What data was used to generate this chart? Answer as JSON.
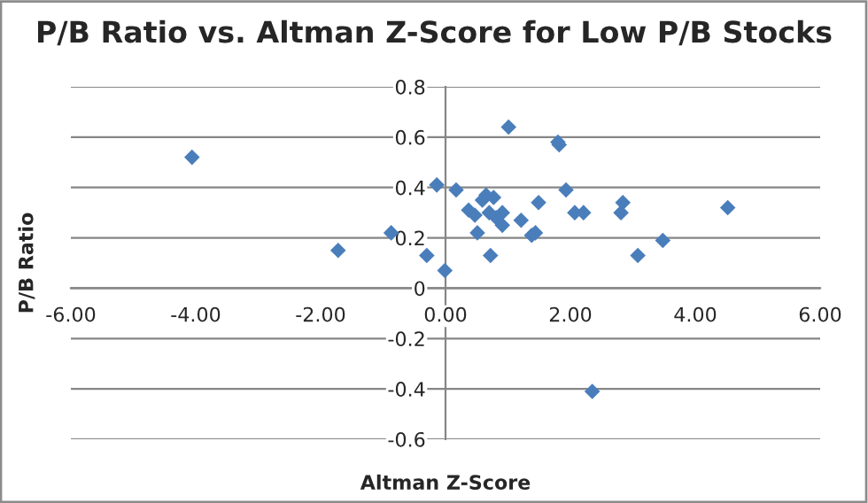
{
  "chart_data": {
    "type": "scatter",
    "title": "P/B Ratio vs. Altman Z-Score for Low P/B Stocks",
    "xlabel": "Altman Z-Score",
    "ylabel": "P/B Ratio",
    "x": [
      -4.06,
      -1.72,
      -0.87,
      -0.3,
      -0.14,
      -0.01,
      0.17,
      0.37,
      0.47,
      0.51,
      0.59,
      0.65,
      0.7,
      0.72,
      0.77,
      0.81,
      0.91,
      0.91,
      1.01,
      1.21,
      1.38,
      1.44,
      1.49,
      1.8,
      1.82,
      1.93,
      2.07,
      2.21,
      2.35,
      2.81,
      2.84,
      3.08,
      3.48,
      4.52
    ],
    "series": [
      {
        "color": "#4a7ebb",
        "values": [
          0.52,
          0.15,
          0.22,
          0.13,
          0.41,
          0.07,
          0.39,
          0.31,
          0.29,
          0.22,
          0.35,
          0.37,
          0.3,
          0.13,
          0.36,
          0.28,
          0.3,
          0.25,
          0.64,
          0.27,
          0.21,
          0.22,
          0.34,
          0.58,
          0.57,
          0.39,
          0.3,
          0.3,
          -0.41,
          0.3,
          0.34,
          0.13,
          0.19,
          0.32
        ]
      }
    ],
    "xlim": [
      -6,
      6
    ],
    "ylim": [
      -0.6,
      0.8
    ],
    "xticks": [
      {
        "value": -6,
        "label": "-6.00"
      },
      {
        "value": -4,
        "label": "-4.00"
      },
      {
        "value": -2,
        "label": "-2.00"
      },
      {
        "value": 0,
        "label": "0.00"
      },
      {
        "value": 2,
        "label": "2.00"
      },
      {
        "value": 4,
        "label": "4.00"
      },
      {
        "value": 6,
        "label": "6.00"
      }
    ],
    "yticks": [
      -0.6,
      -0.4,
      -0.2,
      0,
      0.2,
      0.4,
      0.6,
      0.8
    ],
    "grid": "y",
    "marker": "diamond",
    "legend": false
  }
}
